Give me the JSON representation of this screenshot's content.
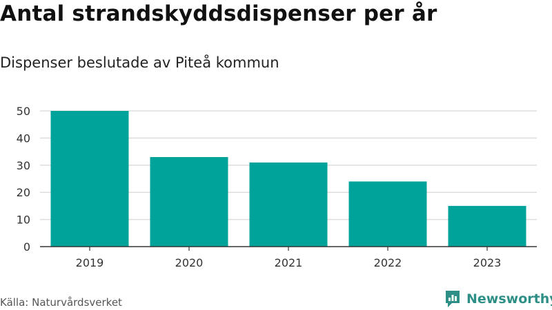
{
  "title": "Antal strandskyddsdispenser per år",
  "subtitle": "Dispenser beslutade av Piteå kommun",
  "source": "Källa: Naturvårdsverket",
  "brand": "Newsworthy",
  "colors": {
    "bar": "#00a39a",
    "grid": "#dddddd",
    "axis": "#333333",
    "brand": "#2e8f87"
  },
  "chart_data": {
    "type": "bar",
    "title": "Antal strandskyddsdispenser per år",
    "subtitle": "Dispenser beslutade av Piteå kommun",
    "xlabel": "",
    "ylabel": "",
    "categories": [
      "2019",
      "2020",
      "2021",
      "2022",
      "2023"
    ],
    "values": [
      50,
      33,
      31,
      24,
      15
    ],
    "yticks": [
      0,
      10,
      20,
      30,
      40,
      50
    ],
    "ylim": [
      0,
      50
    ],
    "grid": true,
    "legend": "none"
  }
}
